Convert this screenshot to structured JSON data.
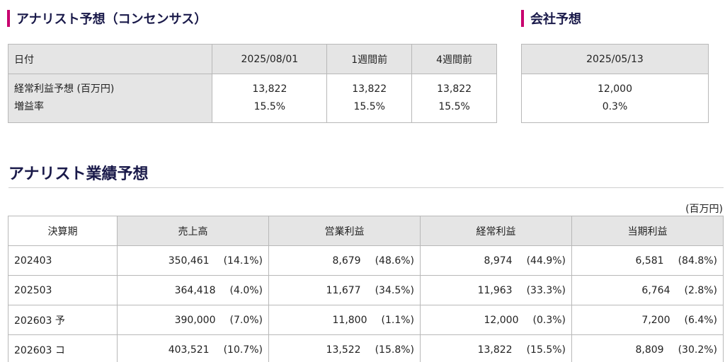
{
  "consensus": {
    "title": "アナリスト予想（コンセンサス）",
    "header": [
      "日付",
      "2025/08/01",
      "1週間前",
      "4週間前"
    ],
    "row_labels": [
      "経常利益予想 (百万円)",
      "増益率"
    ],
    "columns": [
      {
        "profit": "13,822",
        "rate": "15.5%"
      },
      {
        "profit": "13,822",
        "rate": "15.5%"
      },
      {
        "profit": "13,822",
        "rate": "15.5%"
      }
    ]
  },
  "company": {
    "title": "会社予想",
    "date": "2025/05/13",
    "profit": "12,000",
    "rate": "0.3%"
  },
  "performance": {
    "title": "アナリスト業績予想",
    "unit": "(百万円)",
    "headers": [
      "決算期",
      "売上高",
      "営業利益",
      "経常利益",
      "当期利益"
    ],
    "rows": [
      {
        "period": "202403",
        "cells": [
          [
            "350,461",
            "(14.1%)"
          ],
          [
            "8,679",
            "(48.6%)"
          ],
          [
            "8,974",
            "(44.9%)"
          ],
          [
            "6,581",
            "(84.8%)"
          ]
        ]
      },
      {
        "period": "202503",
        "cells": [
          [
            "364,418",
            "(4.0%)"
          ],
          [
            "11,677",
            "(34.5%)"
          ],
          [
            "11,963",
            "(33.3%)"
          ],
          [
            "6,764",
            "(2.8%)"
          ]
        ]
      },
      {
        "period": "202603 予",
        "cells": [
          [
            "390,000",
            "(7.0%)"
          ],
          [
            "11,800",
            "(1.1%)"
          ],
          [
            "12,000",
            "(0.3%)"
          ],
          [
            "7,200",
            "(6.4%)"
          ]
        ]
      },
      {
        "period": "202603 コ",
        "cells": [
          [
            "403,521",
            "(10.7%)"
          ],
          [
            "13,522",
            "(15.8%)"
          ],
          [
            "13,822",
            "(15.5%)"
          ],
          [
            "8,809",
            "(30.2%)"
          ]
        ]
      }
    ]
  },
  "colors": {
    "accent": "#c8006e",
    "heading": "#1a1a4a",
    "header_bg": "#e5e5e5",
    "border": "#b8b8b8"
  }
}
